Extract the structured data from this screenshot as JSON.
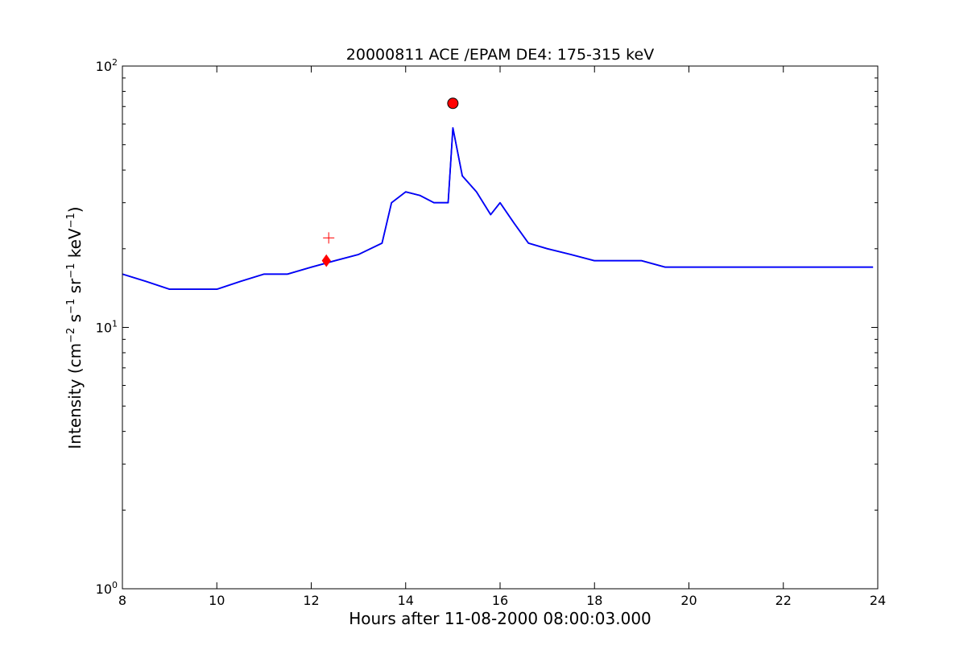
{
  "chart_data": {
    "type": "line",
    "title": "20000811 ACE /EPAM DE4: 175-315 keV",
    "xlabel": "Hours after 11-08-2000 08:00:03.000",
    "ylabel": {
      "text": "Intensity (cm",
      "sup1": "−2",
      "part2": " s",
      "sup2": "−1",
      "part3": " sr",
      "sup3": "−1",
      "part4": " keV",
      "sup4": "−1",
      "part5": ")"
    },
    "xlim": [
      8,
      24
    ],
    "ylim": [
      1,
      100
    ],
    "yscale": "log",
    "grid": false,
    "x_ticks": [
      "8",
      "10",
      "12",
      "14",
      "16",
      "18",
      "20",
      "22",
      "24"
    ],
    "y_ticks": [
      {
        "base": "10",
        "exp": "0"
      },
      {
        "base": "10",
        "exp": "1"
      },
      {
        "base": "10",
        "exp": "2"
      }
    ],
    "colors": {
      "raw": "#000000",
      "smoothed": "#0000ff",
      "markers": "#ff0000"
    },
    "series": [
      {
        "color": "#000000",
        "description_ref": "raw",
        "x": [
          8.0,
          8.5,
          9.0,
          9.5,
          10.0,
          10.5,
          11.0,
          11.5,
          12.0,
          12.5,
          13.0,
          13.5,
          13.7,
          14.0,
          14.3,
          14.6,
          14.9,
          15.0,
          15.2,
          15.5,
          15.8,
          16.0,
          16.3,
          16.6,
          17.0,
          17.5,
          18.0,
          18.5,
          19.0,
          19.5,
          20.0,
          20.5,
          21.0,
          21.5,
          22.0,
          22.5,
          23.0,
          23.5,
          23.9
        ],
        "y": [
          16,
          15,
          14,
          14,
          14,
          15,
          16,
          16,
          17,
          18,
          19,
          21,
          30,
          33,
          32,
          30,
          30,
          58,
          38,
          33,
          27,
          30,
          25,
          21,
          20,
          19,
          18,
          18,
          18,
          17,
          17,
          17,
          17,
          17,
          17,
          17,
          17,
          17,
          17
        ]
      },
      {
        "color": "#0000ff",
        "description_ref": "smoothed",
        "x": [
          8.0,
          8.5,
          9.0,
          9.5,
          10.0,
          10.5,
          11.0,
          11.5,
          12.0,
          12.5,
          13.0,
          13.5,
          13.7,
          14.0,
          14.3,
          14.6,
          14.9,
          15.0,
          15.2,
          15.5,
          15.8,
          16.0,
          16.3,
          16.6,
          17.0,
          17.5,
          18.0,
          18.5,
          19.0,
          19.5,
          20.0,
          20.5,
          21.0,
          21.5,
          22.0,
          22.5,
          23.0,
          23.5,
          23.9
        ],
        "y": [
          16,
          15,
          14,
          14,
          14,
          15,
          16,
          16,
          17,
          18,
          19,
          21,
          30,
          33,
          32,
          30,
          30,
          58,
          38,
          33,
          27,
          30,
          25,
          21,
          20,
          19,
          18,
          18,
          18,
          17,
          17,
          17,
          17,
          17,
          17,
          17,
          17,
          17,
          17
        ]
      }
    ],
    "markers": [
      {
        "shape": "circle",
        "x": 15.0,
        "y": 72,
        "color": "#ff0000"
      },
      {
        "shape": "diamond",
        "x": 12.32,
        "y": 18,
        "color": "#ff0000"
      },
      {
        "shape": "plus",
        "x": 12.37,
        "y": 22,
        "color": "#ff0000"
      }
    ]
  }
}
